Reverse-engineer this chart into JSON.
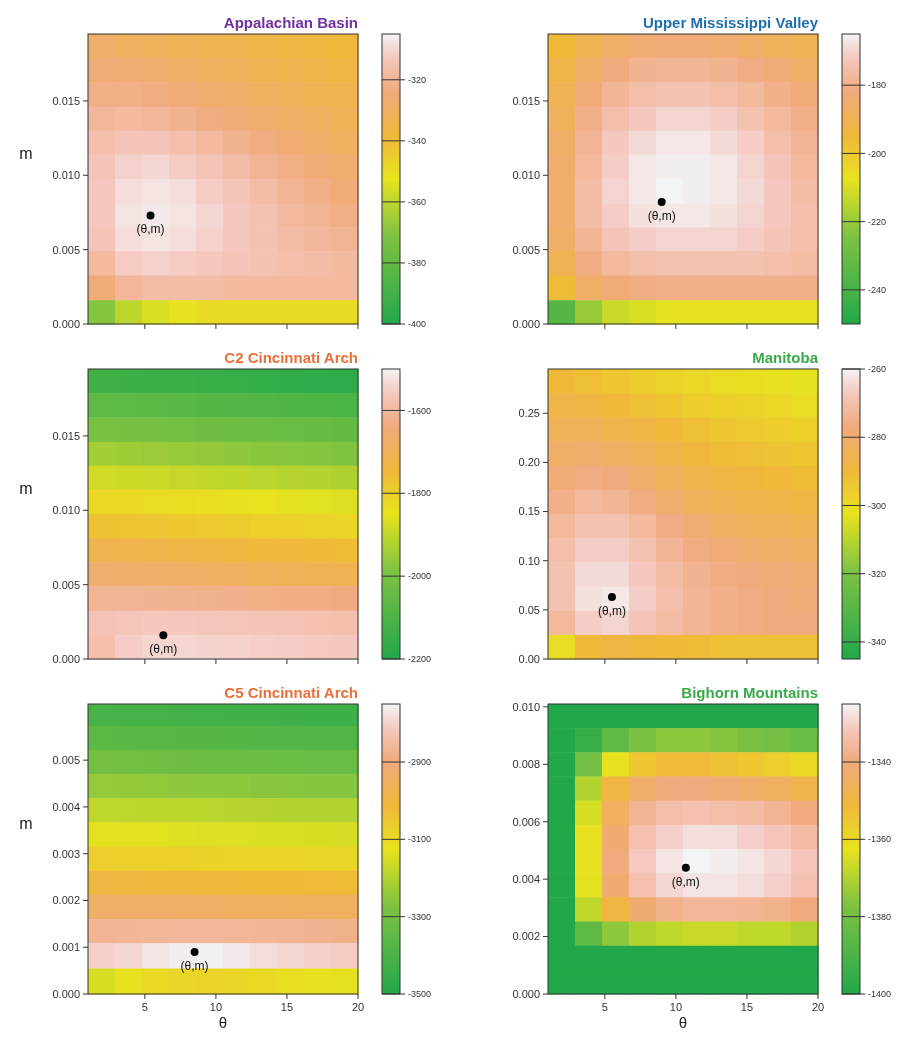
{
  "chart_data": [
    {
      "type": "heatmap",
      "title": "Appalachian Basin",
      "ylabel": "m",
      "tick_labels": "y",
      "x": [
        1.95,
        3.85,
        5.75,
        7.65,
        9.55,
        11.45,
        13.35,
        15.25,
        17.15,
        19.05
      ],
      "y": [
        0.0187,
        0.0171,
        0.0154,
        0.0138,
        0.0122,
        0.0106,
        0.0089,
        0.0073,
        0.0057,
        0.0041,
        0.0024,
        0.0008
      ],
      "xlim": [
        1,
        20
      ],
      "xticks": [
        5,
        10,
        15,
        20
      ],
      "ylim": [
        0,
        0.0195
      ],
      "yticks": [
        {
          "value": 0,
          "label": "0.000"
        },
        {
          "value": 0.005,
          "label": "0.005"
        },
        {
          "value": 0.01,
          "label": "0.010"
        },
        {
          "value": 0.015,
          "label": "0.015"
        }
      ],
      "clim": [
        -400,
        -305
      ],
      "cticks": [
        -400,
        -380,
        -360,
        -340,
        -320
      ],
      "cells": [
        [
          -328,
          -330,
          -331,
          -332,
          -333,
          -334,
          -335,
          -336,
          -337,
          -338
        ],
        [
          -325,
          -326,
          -327,
          -329,
          -330,
          -331,
          -333,
          -334,
          -335,
          -336
        ],
        [
          -322,
          -322,
          -323,
          -325,
          -327,
          -328,
          -330,
          -331,
          -333,
          -334
        ],
        [
          -319,
          -318,
          -319,
          -321,
          -323,
          -325,
          -327,
          -329,
          -330,
          -332
        ],
        [
          -316,
          -314,
          -314,
          -316,
          -318,
          -321,
          -323,
          -326,
          -328,
          -330
        ],
        [
          -314,
          -311,
          -310,
          -312,
          -314,
          -317,
          -320,
          -322,
          -325,
          -327
        ],
        [
          -313,
          -309,
          -308,
          -309,
          -312,
          -314,
          -317,
          -320,
          -322,
          -325
        ],
        [
          -313,
          -308,
          -307,
          -308,
          -310,
          -313,
          -315,
          -318,
          -320,
          -322
        ],
        [
          -314,
          -309,
          -308,
          -309,
          -311,
          -313,
          -315,
          -317,
          -319,
          -320
        ],
        [
          -318,
          -312,
          -311,
          -312,
          -313,
          -314,
          -315,
          -316,
          -317,
          -318
        ],
        [
          -325,
          -319,
          -317,
          -317,
          -317,
          -318,
          -318,
          -318,
          -318,
          -318
        ],
        [
          -370,
          -360,
          -355,
          -352,
          -350,
          -350,
          -350,
          -350,
          -350,
          -350
        ]
      ],
      "marker": "circle",
      "series": [
        {
          "type": "scatter",
          "x": [
            5.4
          ],
          "values": [
            0.0073
          ],
          "color": "#000000"
        }
      ],
      "annotations": [
        {
          "text": "(θ,m)",
          "x": 5.4,
          "y": 0.0073
        }
      ]
    },
    {
      "type": "heatmap",
      "title": "Upper Mississippi Valley",
      "tick_labels": "y",
      "x": [
        1.95,
        3.85,
        5.75,
        7.65,
        9.55,
        11.45,
        13.35,
        15.25,
        17.15,
        19.05
      ],
      "y": [
        0.0187,
        0.0171,
        0.0154,
        0.0138,
        0.0122,
        0.0106,
        0.0089,
        0.0073,
        0.0057,
        0.0041,
        0.0024,
        0.0008
      ],
      "xlim": [
        1,
        20
      ],
      "xticks": [
        5,
        10,
        15,
        20
      ],
      "ylim": [
        0,
        0.0195
      ],
      "yticks": [
        {
          "value": 0,
          "label": "0.000"
        },
        {
          "value": 0.005,
          "label": "0.005"
        },
        {
          "value": 0.01,
          "label": "0.010"
        },
        {
          "value": 0.015,
          "label": "0.015"
        }
      ],
      "clim": [
        -250,
        -165
      ],
      "cticks": [
        -240,
        -220,
        -200,
        -180
      ],
      "cells": [
        [
          -195,
          -190,
          -186,
          -184,
          -183,
          -183,
          -184,
          -186,
          -188,
          -190
        ],
        [
          -192,
          -186,
          -182,
          -179,
          -178,
          -178,
          -179,
          -181,
          -183,
          -186
        ],
        [
          -190,
          -183,
          -178,
          -175,
          -174,
          -174,
          -175,
          -177,
          -180,
          -183
        ],
        [
          -188,
          -180,
          -175,
          -172,
          -170,
          -170,
          -171,
          -174,
          -177,
          -180
        ],
        [
          -186,
          -178,
          -172,
          -169,
          -167,
          -167,
          -169,
          -171,
          -175,
          -178
        ],
        [
          -185,
          -177,
          -171,
          -167,
          -166,
          -166,
          -167,
          -170,
          -173,
          -177
        ],
        [
          -185,
          -176,
          -170,
          -167,
          -165,
          -166,
          -167,
          -169,
          -172,
          -176
        ],
        [
          -185,
          -176,
          -171,
          -168,
          -167,
          -167,
          -168,
          -170,
          -172,
          -175
        ],
        [
          -186,
          -178,
          -173,
          -171,
          -170,
          -170,
          -170,
          -171,
          -173,
          -175
        ],
        [
          -190,
          -181,
          -177,
          -175,
          -174,
          -174,
          -174,
          -174,
          -175,
          -176
        ],
        [
          -196,
          -186,
          -183,
          -181,
          -180,
          -180,
          -180,
          -180,
          -180,
          -180
        ],
        [
          -235,
          -220,
          -212,
          -210,
          -208,
          -207,
          -207,
          -207,
          -207,
          -207
        ]
      ],
      "marker": "circle",
      "series": [
        {
          "type": "scatter",
          "x": [
            9
          ],
          "values": [
            0.0082
          ],
          "color": "#000000"
        }
      ],
      "annotations": [
        {
          "text": "(θ,m)",
          "x": 9,
          "y": 0.0082
        }
      ]
    },
    {
      "type": "heatmap",
      "title": "C2 Cincinnati Arch",
      "ylabel": "m",
      "tick_labels": "y",
      "x": [
        1.95,
        3.85,
        5.75,
        7.65,
        9.55,
        11.45,
        13.35,
        15.25,
        17.15,
        19.05
      ],
      "y": [
        0.0187,
        0.0171,
        0.0154,
        0.0138,
        0.0122,
        0.0106,
        0.0089,
        0.0073,
        0.0057,
        0.0041,
        0.0024,
        0.0008
      ],
      "xlim": [
        1,
        20
      ],
      "xticks": [
        5,
        10,
        15,
        20
      ],
      "ylim": [
        0,
        0.0195
      ],
      "yticks": [
        {
          "value": 0,
          "label": "0.000"
        },
        {
          "value": 0.005,
          "label": "0.005"
        },
        {
          "value": 0.01,
          "label": "0.010"
        },
        {
          "value": 0.015,
          "label": "0.015"
        }
      ],
      "clim": [
        -2200,
        -1500
      ],
      "cticks": [
        -2200,
        -2000,
        -1800,
        -1600
      ],
      "cells": [
        [
          -2130,
          -2135,
          -2140,
          -2145,
          -2150,
          -2155,
          -2160,
          -2165,
          -2170,
          -2175
        ],
        [
          -2060,
          -2065,
          -2070,
          -2075,
          -2080,
          -2085,
          -2090,
          -2095,
          -2100,
          -2105
        ],
        [
          -2000,
          -2005,
          -2010,
          -2015,
          -2020,
          -2025,
          -2030,
          -2035,
          -2040,
          -2045
        ],
        [
          -1940,
          -1945,
          -1950,
          -1955,
          -1960,
          -1965,
          -1970,
          -1975,
          -1980,
          -1985
        ],
        [
          -1880,
          -1885,
          -1890,
          -1895,
          -1900,
          -1905,
          -1910,
          -1915,
          -1920,
          -1925
        ],
        [
          -1820,
          -1825,
          -1830,
          -1835,
          -1840,
          -1845,
          -1850,
          -1855,
          -1860,
          -1865
        ],
        [
          -1770,
          -1775,
          -1780,
          -1785,
          -1790,
          -1795,
          -1800,
          -1805,
          -1810,
          -1815
        ],
        [
          -1710,
          -1715,
          -1720,
          -1725,
          -1730,
          -1735,
          -1740,
          -1745,
          -1750,
          -1755
        ],
        [
          -1660,
          -1665,
          -1670,
          -1675,
          -1680,
          -1685,
          -1690,
          -1695,
          -1700,
          -1705
        ],
        [
          -1610,
          -1612,
          -1615,
          -1618,
          -1620,
          -1622,
          -1625,
          -1628,
          -1630,
          -1635
        ],
        [
          -1570,
          -1565,
          -1560,
          -1560,
          -1562,
          -1565,
          -1568,
          -1570,
          -1575,
          -1580
        ],
        [
          -1580,
          -1550,
          -1540,
          -1540,
          -1542,
          -1545,
          -1548,
          -1550,
          -1555,
          -1560
        ]
      ],
      "marker": "circle",
      "series": [
        {
          "type": "scatter",
          "x": [
            6.3
          ],
          "values": [
            0.0016
          ],
          "color": "#000000"
        }
      ],
      "annotations": [
        {
          "text": "(θ,m)",
          "x": 6.3,
          "y": 0.0016
        }
      ]
    },
    {
      "type": "heatmap",
      "title": "Manitoba",
      "tick_labels": "y",
      "x": [
        1.95,
        3.85,
        5.75,
        7.65,
        9.55,
        11.45,
        13.35,
        15.25,
        17.15,
        19.05
      ],
      "y": [
        0.283,
        0.258,
        0.234,
        0.209,
        0.184,
        0.16,
        0.135,
        0.111,
        0.086,
        0.061,
        0.037,
        0.012
      ],
      "xlim": [
        1,
        20
      ],
      "xticks": [
        5,
        10,
        15,
        20
      ],
      "ylim": [
        0,
        0.295
      ],
      "yticks": [
        {
          "value": 0,
          "label": "0.00"
        },
        {
          "value": 0.05,
          "label": "0.05"
        },
        {
          "value": 0.1,
          "label": "0.10"
        },
        {
          "value": 0.15,
          "label": "0.15"
        },
        {
          "value": 0.2,
          "label": "0.20"
        },
        {
          "value": 0.25,
          "label": "0.25"
        }
      ],
      "clim": [
        -345,
        -260
      ],
      "cticks": [
        -340,
        -320,
        -300,
        -280,
        -260
      ],
      "cells": [
        [
          -290,
          -292,
          -294,
          -296,
          -298,
          -299,
          -300,
          -301,
          -302,
          -303
        ],
        [
          -287,
          -288,
          -290,
          -292,
          -294,
          -296,
          -297,
          -298,
          -299,
          -300
        ],
        [
          -284,
          -284,
          -286,
          -288,
          -290,
          -292,
          -294,
          -295,
          -296,
          -297
        ],
        [
          -281,
          -280,
          -282,
          -284,
          -287,
          -289,
          -291,
          -292,
          -293,
          -294
        ],
        [
          -278,
          -276,
          -277,
          -280,
          -283,
          -286,
          -288,
          -289,
          -290,
          -291
        ],
        [
          -275,
          -272,
          -273,
          -276,
          -280,
          -283,
          -285,
          -286,
          -287,
          -288
        ],
        [
          -272,
          -269,
          -269,
          -272,
          -276,
          -279,
          -282,
          -283,
          -284,
          -285
        ],
        [
          -270,
          -266,
          -266,
          -269,
          -273,
          -276,
          -278,
          -280,
          -281,
          -282
        ],
        [
          -269,
          -264,
          -264,
          -267,
          -271,
          -274,
          -276,
          -277,
          -278,
          -279
        ],
        [
          -269,
          -263,
          -262,
          -266,
          -270,
          -273,
          -275,
          -276,
          -277,
          -278
        ],
        [
          -272,
          -266,
          -265,
          -268,
          -271,
          -273,
          -275,
          -276,
          -277,
          -277
        ],
        [
          -300,
          -290,
          -288,
          -289,
          -290,
          -291,
          -292,
          -292,
          -292,
          -292
        ]
      ],
      "marker": "circle",
      "series": [
        {
          "type": "scatter",
          "x": [
            5.5
          ],
          "values": [
            0.063
          ],
          "color": "#000000"
        }
      ],
      "annotations": [
        {
          "text": "(θ,m)",
          "x": 5.5,
          "y": 0.063
        }
      ]
    },
    {
      "type": "heatmap",
      "title": "C5 Cincinnati Arch",
      "xlabel": "θ",
      "ylabel": "m",
      "x": [
        1.95,
        3.85,
        5.75,
        7.65,
        9.55,
        11.45,
        13.35,
        15.25,
        17.15,
        19.05
      ],
      "y": [
        0.00599,
        0.00548,
        0.00496,
        0.00444,
        0.00393,
        0.00341,
        0.00289,
        0.00238,
        0.00186,
        0.00134,
        0.00083,
        0.00026
      ],
      "xlim": [
        1,
        20
      ],
      "xticks": [
        5,
        10,
        15,
        20
      ],
      "ylim": [
        0,
        0.0062
      ],
      "yticks": [
        {
          "value": 0,
          "label": "0.000"
        },
        {
          "value": 0.001,
          "label": "0.001"
        },
        {
          "value": 0.002,
          "label": "0.002"
        },
        {
          "value": 0.003,
          "label": "0.003"
        },
        {
          "value": 0.004,
          "label": "0.004"
        },
        {
          "value": 0.005,
          "label": "0.005"
        }
      ],
      "clim": [
        -3500,
        -2750
      ],
      "cticks": [
        -3500,
        -3300,
        -3100,
        -2900
      ],
      "cells": [
        [
          -3410,
          -3412,
          -3415,
          -3418,
          -3420,
          -3422,
          -3425,
          -3428,
          -3430,
          -3432
        ],
        [
          -3360,
          -3362,
          -3365,
          -3368,
          -3370,
          -3372,
          -3375,
          -3378,
          -3380,
          -3382
        ],
        [
          -3300,
          -3302,
          -3305,
          -3308,
          -3310,
          -3312,
          -3315,
          -3318,
          -3320,
          -3322
        ],
        [
          -3240,
          -3242,
          -3245,
          -3248,
          -3250,
          -3252,
          -3255,
          -3258,
          -3260,
          -3262
        ],
        [
          -3180,
          -3182,
          -3185,
          -3188,
          -3190,
          -3192,
          -3195,
          -3198,
          -3200,
          -3202
        ],
        [
          -3130,
          -3132,
          -3135,
          -3138,
          -3140,
          -3142,
          -3145,
          -3148,
          -3150,
          -3152
        ],
        [
          -3070,
          -3072,
          -3075,
          -3078,
          -3080,
          -3082,
          -3085,
          -3088,
          -3090,
          -3092
        ],
        [
          -3000,
          -3002,
          -3005,
          -3008,
          -3010,
          -3012,
          -3015,
          -3018,
          -3020,
          -3022
        ],
        [
          -2935,
          -2935,
          -2938,
          -2940,
          -2940,
          -2942,
          -2945,
          -2948,
          -2950,
          -2952
        ],
        [
          -2870,
          -2865,
          -2862,
          -2860,
          -2860,
          -2862,
          -2865,
          -2870,
          -2875,
          -2880
        ],
        [
          -2800,
          -2790,
          -2770,
          -2760,
          -2755,
          -2765,
          -2780,
          -2790,
          -2800,
          -2805
        ],
        [
          -3150,
          -3120,
          -3100,
          -3090,
          -3085,
          -3090,
          -3100,
          -3110,
          -3120,
          -3130
        ]
      ],
      "marker": "circle",
      "series": [
        {
          "type": "scatter",
          "x": [
            8.5
          ],
          "values": [
            0.0009
          ],
          "color": "#000000"
        }
      ],
      "annotations": [
        {
          "text": "(θ,m)",
          "x": 8.5,
          "y": 0.0009
        }
      ]
    },
    {
      "type": "heatmap",
      "title": "Bighorn Mountains",
      "xlabel": "θ",
      "x": [
        1.95,
        3.85,
        5.75,
        7.65,
        9.55,
        11.45,
        13.35,
        15.25,
        17.15,
        19.05
      ],
      "y": [
        0.00968,
        0.00884,
        0.008,
        0.00716,
        0.00631,
        0.00547,
        0.00463,
        0.00379,
        0.00295,
        0.0021,
        0.00126,
        0.00042
      ],
      "xlim": [
        1,
        20
      ],
      "xticks": [
        5,
        10,
        15,
        20
      ],
      "ylim": [
        0,
        0.0101
      ],
      "yticks": [
        {
          "value": 0,
          "label": "0.000"
        },
        {
          "value": 0.002,
          "label": "0.002"
        },
        {
          "value": 0.004,
          "label": "0.004"
        },
        {
          "value": 0.006,
          "label": "0.006"
        },
        {
          "value": 0.008,
          "label": "0.008"
        },
        {
          "value": 0.01,
          "label": "0.010"
        }
      ],
      "clim": [
        -1400,
        -1325
      ],
      "cticks": [
        -1400,
        -1380,
        -1360,
        -1340
      ],
      "cells": [
        [
          -1400,
          -1400,
          -1400,
          -1400,
          -1400,
          -1400,
          -1400,
          -1400,
          -1400,
          -1400
        ],
        [
          -1400,
          -1395,
          -1385,
          -1378,
          -1375,
          -1375,
          -1376,
          -1378,
          -1380,
          -1382
        ],
        [
          -1400,
          -1380,
          -1362,
          -1355,
          -1352,
          -1352,
          -1353,
          -1355,
          -1357,
          -1360
        ],
        [
          -1400,
          -1370,
          -1350,
          -1343,
          -1340,
          -1340,
          -1341,
          -1343,
          -1345,
          -1348
        ],
        [
          -1400,
          -1365,
          -1345,
          -1337,
          -1334,
          -1333,
          -1334,
          -1335,
          -1337,
          -1340
        ],
        [
          -1400,
          -1362,
          -1342,
          -1333,
          -1330,
          -1328,
          -1328,
          -1330,
          -1332,
          -1335
        ],
        [
          -1400,
          -1362,
          -1340,
          -1331,
          -1327,
          -1325,
          -1326,
          -1327,
          -1329,
          -1332
        ],
        [
          -1400,
          -1363,
          -1342,
          -1333,
          -1329,
          -1327,
          -1327,
          -1328,
          -1330,
          -1333
        ],
        [
          -1400,
          -1368,
          -1350,
          -1342,
          -1338,
          -1336,
          -1336,
          -1337,
          -1338,
          -1340
        ],
        [
          -1400,
          -1385,
          -1375,
          -1370,
          -1368,
          -1367,
          -1367,
          -1368,
          -1368,
          -1370
        ],
        [
          -1400,
          -1400,
          -1400,
          -1400,
          -1400,
          -1400,
          -1400,
          -1400,
          -1400,
          -1400
        ],
        [
          -1400,
          -1400,
          -1400,
          -1400,
          -1400,
          -1400,
          -1400,
          -1400,
          -1400,
          -1400
        ]
      ],
      "marker": "circle",
      "series": [
        {
          "type": "scatter",
          "x": [
            10.7
          ],
          "values": [
            0.0044
          ],
          "color": "#000000"
        }
      ],
      "annotations": [
        {
          "text": "(θ,m)",
          "x": 10.7,
          "y": 0.0044
        }
      ]
    }
  ]
}
